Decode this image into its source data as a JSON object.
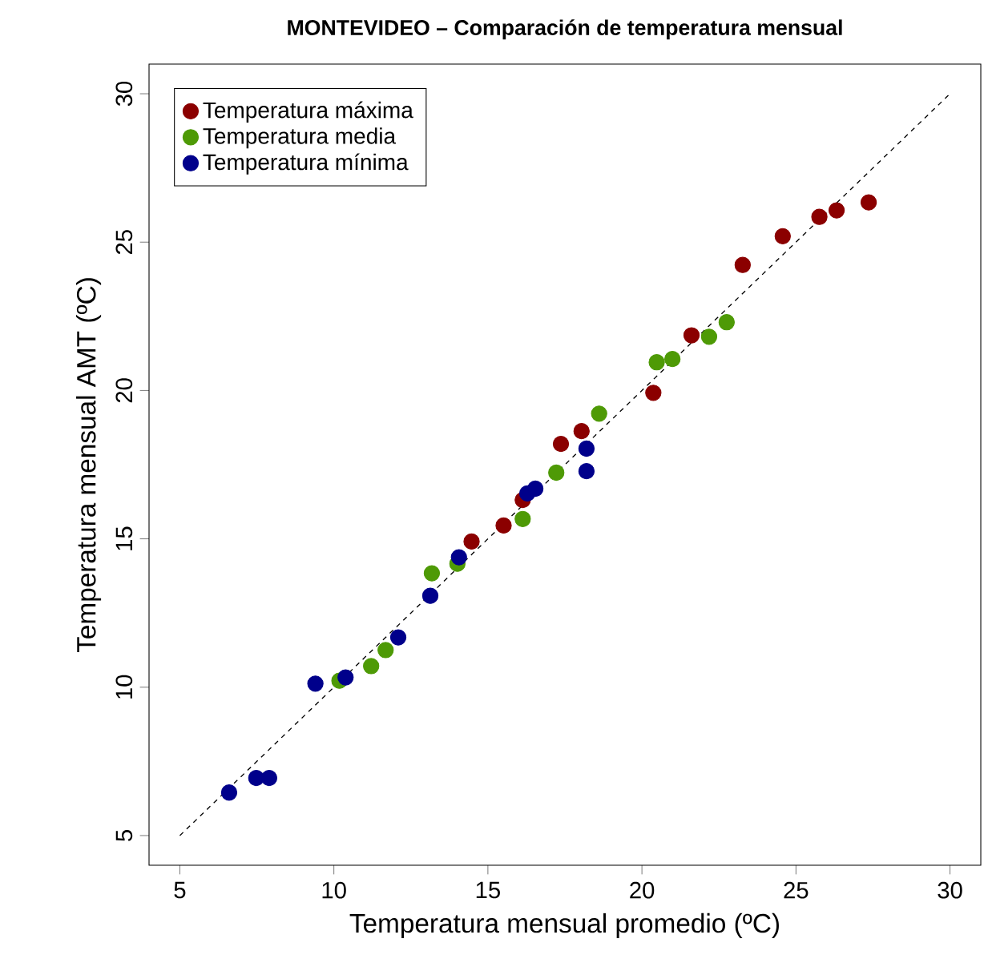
{
  "chart_data": {
    "type": "scatter",
    "title": "MONTEVIDEO – Comparación de temperatura mensual",
    "xlabel": "Temperatura mensual promedio (ºC)",
    "ylabel": "Temperatura mensual AMT (ºC)",
    "xlim": [
      4,
      31
    ],
    "ylim": [
      4,
      31
    ],
    "xticks": [
      5,
      10,
      15,
      20,
      25,
      30
    ],
    "yticks": [
      5,
      10,
      15,
      20,
      25,
      30
    ],
    "grid": false,
    "legend": "top left",
    "marker": "circle",
    "series": [
      {
        "name": "Temperatura máxima",
        "color": "#8b0000",
        "x": [
          14.47,
          15.51,
          16.13,
          17.37,
          18.04,
          20.37,
          21.61,
          23.27,
          24.57,
          25.76,
          26.32,
          27.36
        ],
        "values": [
          14.91,
          15.45,
          16.31,
          18.2,
          18.63,
          19.92,
          21.86,
          24.23,
          25.2,
          25.85,
          26.07,
          26.34
        ]
      },
      {
        "name": "Temperatura media",
        "color": "#4e9a06",
        "x": [
          10.18,
          11.21,
          11.68,
          13.18,
          14.01,
          16.13,
          17.22,
          18.61,
          20.48,
          20.99,
          22.18,
          22.75
        ],
        "values": [
          10.22,
          10.71,
          11.25,
          13.84,
          14.16,
          15.67,
          17.23,
          19.22,
          20.95,
          21.06,
          21.81,
          22.3
        ]
      },
      {
        "name": "Temperatura mínima",
        "color": "#00008b",
        "x": [
          6.6,
          7.48,
          7.9,
          9.4,
          10.38,
          12.09,
          13.13,
          14.06,
          16.28,
          16.54,
          18.2,
          18.2
        ],
        "values": [
          6.45,
          6.94,
          6.94,
          10.12,
          10.33,
          11.68,
          13.08,
          14.38,
          16.53,
          16.69,
          18.04,
          17.28
        ]
      },
      {
        "type": "line",
        "color": "#000000",
        "line_style": "dashed",
        "marker": "none",
        "x": [
          5,
          30
        ],
        "values": [
          5,
          30
        ]
      }
    ]
  }
}
